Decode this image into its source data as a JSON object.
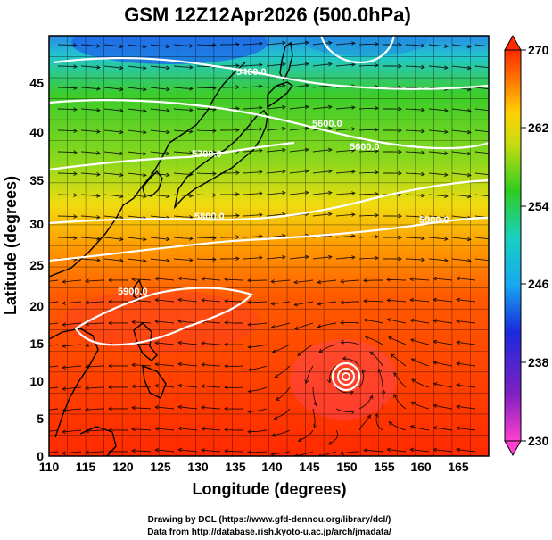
{
  "title": "GSM 12Z12Apr2026 (500.0hPa)",
  "x_axis": {
    "label": "Longitude (degrees)",
    "ticks": [
      "110",
      "115",
      "120",
      "125",
      "130",
      "135",
      "140",
      "145",
      "150",
      "155",
      "160",
      "165"
    ]
  },
  "y_axis": {
    "label": "Latitude  (degrees)",
    "ticks": [
      "0",
      "5",
      "10",
      "15",
      "20",
      "25",
      "30",
      "35",
      "40",
      "45"
    ]
  },
  "contour_labels": [
    "5400.0",
    "5700.0",
    "5800.0",
    "5900.0",
    "5900.0",
    "5600.0",
    "5600.0"
  ],
  "colorbar": {
    "ticks": [
      "270",
      "262",
      "254",
      "246",
      "238",
      "230"
    ]
  },
  "credits": {
    "line1": "Drawing by DCL (https://www.gfd-dennou.org/library/dcl/)",
    "line2": "Data from http://database.rish.kyoto-u.ac.jp/arch/jmadata/"
  },
  "colors": {
    "warm": "#ff3000",
    "orange": "#ff8a00",
    "yellow": "#ffe400",
    "green": "#3ccc1c",
    "cyan": "#18c8e0",
    "blue": "#1a2adc",
    "magenta": "#ff40d0",
    "contour": "#ffffff",
    "coast": "#000000"
  }
}
